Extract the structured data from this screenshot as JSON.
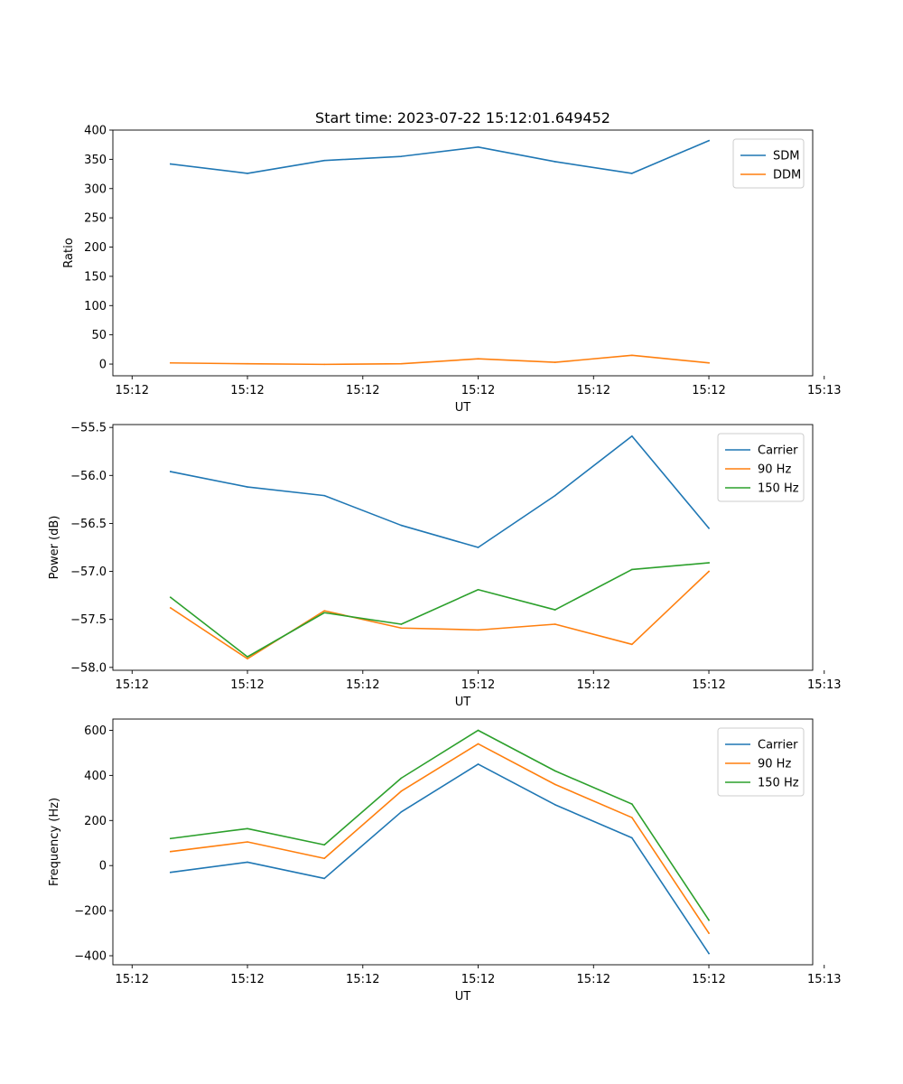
{
  "figure": {
    "title": "Start time: 2023-07-22 15:12:01.649452"
  },
  "chart_data": [
    {
      "type": "line",
      "title": "Start time: 2023-07-22 15:12:01.649452",
      "xlabel": "UT",
      "ylabel": "Ratio",
      "x": [
        1,
        2,
        3,
        4,
        5,
        6,
        7,
        8
      ],
      "xlim": [
        0.25,
        9.35
      ],
      "x_ticks": [
        0.5,
        2,
        3.5,
        5,
        6.5,
        8,
        9.5
      ],
      "x_tick_labels": [
        "15:12",
        "15:12",
        "15:12",
        "15:12",
        "15:12",
        "15:12",
        "15:13"
      ],
      "ylim": [
        -20,
        400
      ],
      "y_ticks": [
        0,
        50,
        100,
        150,
        200,
        250,
        300,
        350,
        400
      ],
      "y_tick_labels": [
        "0",
        "50",
        "100",
        "150",
        "200",
        "250",
        "300",
        "350",
        "400"
      ],
      "legend": "top-right",
      "series": [
        {
          "name": "SDM",
          "color": "#1f77b4",
          "values": [
            342,
            326,
            348,
            355,
            371,
            346,
            326,
            382
          ]
        },
        {
          "name": "DDM",
          "color": "#ff7f0e",
          "values": [
            2,
            0.5,
            -0.5,
            0.5,
            9,
            3,
            15,
            2
          ]
        }
      ]
    },
    {
      "type": "line",
      "title": "",
      "xlabel": "UT",
      "ylabel": "Power (dB)",
      "x": [
        1,
        2,
        3,
        4,
        5,
        6,
        7,
        8
      ],
      "xlim": [
        0.25,
        9.35
      ],
      "x_ticks": [
        0.5,
        2,
        3.5,
        5,
        6.5,
        8,
        9.5
      ],
      "x_tick_labels": [
        "15:12",
        "15:12",
        "15:12",
        "15:12",
        "15:12",
        "15:12",
        "15:13"
      ],
      "ylim": [
        -58.03,
        -55.47
      ],
      "y_ticks": [
        -58.0,
        -57.5,
        -57.0,
        -56.5,
        -56.0,
        -55.5
      ],
      "y_tick_labels": [
        "−58.0",
        "−57.5",
        "−57.0",
        "−56.5",
        "−56.0",
        "−55.5"
      ],
      "legend": "top-right",
      "series": [
        {
          "name": "Carrier",
          "color": "#1f77b4",
          "values": [
            -55.96,
            -56.12,
            -56.21,
            -56.52,
            -56.75,
            -56.21,
            -55.59,
            -56.55
          ]
        },
        {
          "name": "90 Hz",
          "color": "#ff7f0e",
          "values": [
            -57.38,
            -57.91,
            -57.41,
            -57.59,
            -57.61,
            -57.55,
            -57.76,
            -57.0
          ]
        },
        {
          "name": "150 Hz",
          "color": "#2ca02c",
          "values": [
            -57.27,
            -57.89,
            -57.43,
            -57.55,
            -57.19,
            -57.4,
            -56.98,
            -56.91
          ]
        }
      ]
    },
    {
      "type": "line",
      "title": "",
      "xlabel": "UT",
      "ylabel": "Frequency (Hz)",
      "x": [
        1,
        2,
        3,
        4,
        5,
        6,
        7,
        8
      ],
      "xlim": [
        0.25,
        9.35
      ],
      "x_ticks": [
        0.5,
        2,
        3.5,
        5,
        6.5,
        8,
        9.5
      ],
      "x_tick_labels": [
        "15:12",
        "15:12",
        "15:12",
        "15:12",
        "15:12",
        "15:12",
        "15:13"
      ],
      "ylim": [
        -440,
        650
      ],
      "y_ticks": [
        -400,
        -200,
        0,
        200,
        400,
        600
      ],
      "y_tick_labels": [
        "−400",
        "−200",
        "0",
        "200",
        "400",
        "600"
      ],
      "legend": "top-right",
      "series": [
        {
          "name": "Carrier",
          "color": "#1f77b4",
          "values": [
            -30,
            15,
            -57,
            238,
            450,
            270,
            123,
            -390
          ]
        },
        {
          "name": "90 Hz",
          "color": "#ff7f0e",
          "values": [
            62,
            105,
            32,
            330,
            540,
            360,
            213,
            -300
          ]
        },
        {
          "name": "150 Hz",
          "color": "#2ca02c",
          "values": [
            120,
            164,
            92,
            388,
            600,
            420,
            273,
            -242
          ]
        }
      ]
    }
  ]
}
